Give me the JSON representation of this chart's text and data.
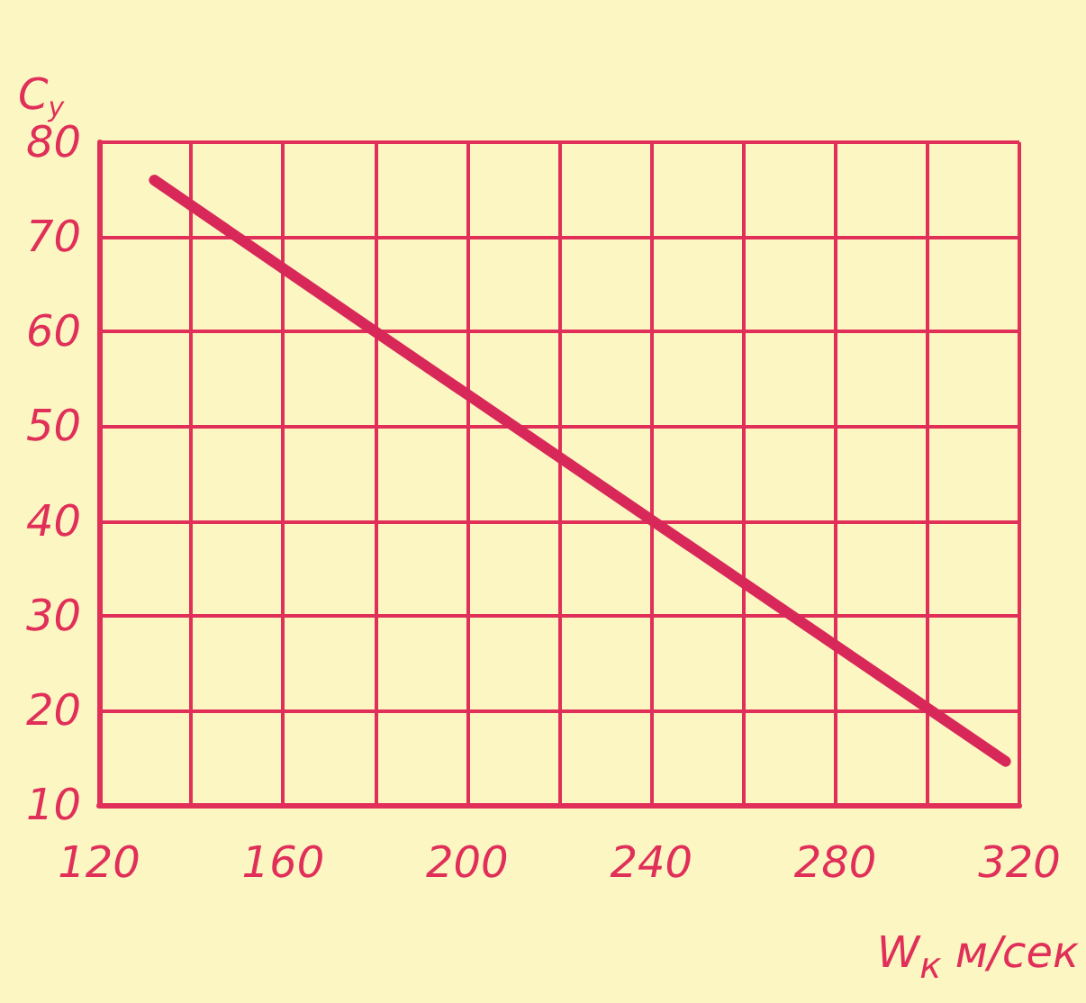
{
  "chart_data": {
    "type": "line",
    "xlabel": "W$_{к}$ м/сек",
    "ylabel": "C$_{y}$",
    "x": [
      132,
      180,
      317
    ],
    "series": [
      {
        "color": "#d8285a",
        "values": [
          76,
          60,
          14.6
        ]
      }
    ],
    "xlim": [
      120,
      320
    ],
    "xticks": [
      120,
      {
        "value": 140,
        "label": null
      },
      160,
      {
        "value": 180,
        "label": null
      },
      200,
      {
        "value": 220,
        "label": null
      },
      240,
      {
        "value": 260,
        "label": null
      },
      280,
      {
        "value": 300,
        "label": null
      },
      320
    ],
    "ylim": [
      10,
      80
    ],
    "yticks": [
      10,
      20,
      30,
      40,
      50,
      60,
      70,
      80
    ],
    "grid": true,
    "marker": "none",
    "line_style": "solid"
  }
}
